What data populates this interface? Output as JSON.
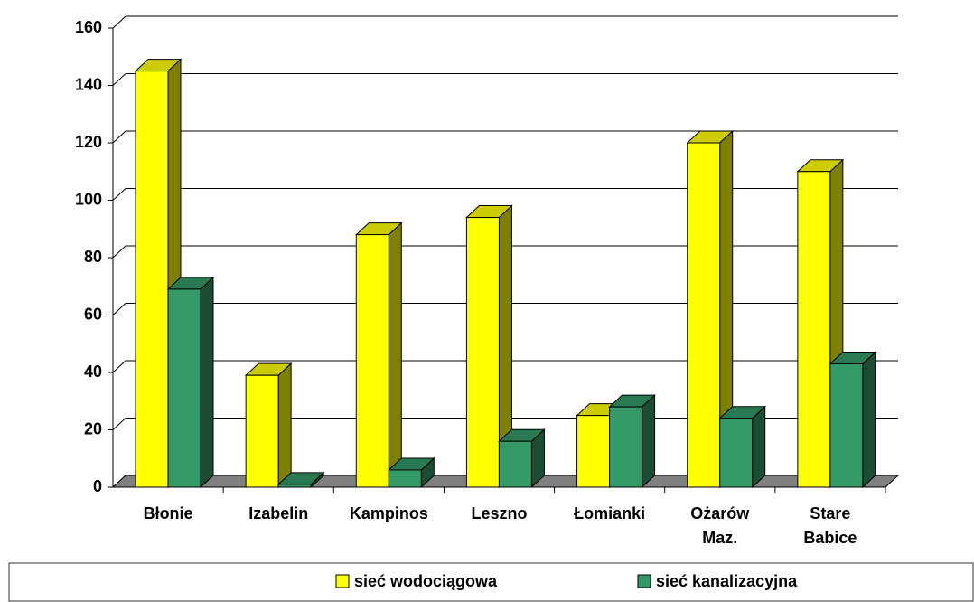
{
  "chart_data": {
    "type": "bar3d",
    "categories": [
      "Błonie",
      "Izabelin",
      "Kampinos",
      "Leszno",
      "Łomianki",
      "Ożarów Maz.",
      "Stare Babice"
    ],
    "series": [
      {
        "name": "sieć wodociągowa",
        "color": "#ffff00",
        "values": [
          145,
          39,
          88,
          94,
          25,
          120,
          110
        ]
      },
      {
        "name": "sieć kanalizacyjna",
        "color": "#339966",
        "values": [
          69,
          1,
          6,
          16,
          28,
          24,
          43
        ]
      }
    ],
    "ylim": [
      0,
      160
    ],
    "yticks": [
      0,
      20,
      40,
      60,
      80,
      100,
      120,
      140,
      160
    ],
    "grid": true,
    "legend": "bottom"
  }
}
